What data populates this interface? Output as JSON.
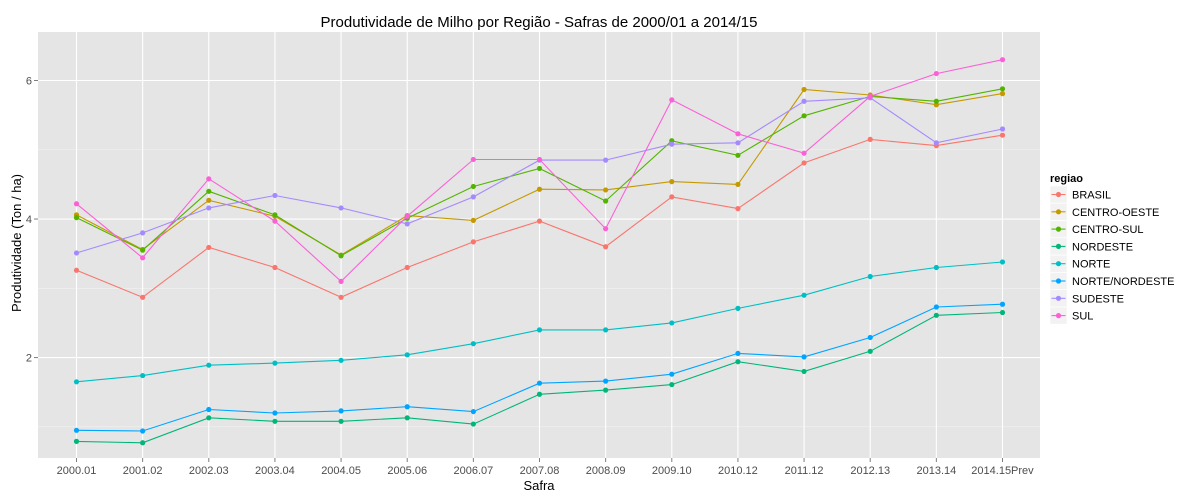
{
  "chart_data": {
    "type": "line",
    "title": "Produtividade de Milho por Região - Safras de 2000/01 a 2014/15",
    "xlabel": "Safra",
    "ylabel": "Produtividade (Ton / ha)",
    "categories": [
      "2000.01",
      "2001.02",
      "2002.03",
      "2003.04",
      "2004.05",
      "2005.06",
      "2006.07",
      "2007.08",
      "2008.09",
      "2009.10",
      "2010.12",
      "2011.12",
      "2012.13",
      "2013.14",
      "2014.15Prev"
    ],
    "yticks": [
      2,
      4,
      6
    ],
    "ylim": [
      0.55,
      6.7
    ],
    "grid": true,
    "legend_title": "regiao",
    "legend_position": "right",
    "series": [
      {
        "name": "BRASIL",
        "color": "#F8766D",
        "values": [
          3.26,
          2.87,
          3.59,
          3.3,
          2.87,
          3.3,
          3.67,
          3.97,
          3.6,
          4.32,
          4.15,
          4.81,
          5.15,
          5.06,
          5.21
        ]
      },
      {
        "name": "CENTRO-OESTE",
        "color": "#C49A00",
        "values": [
          4.06,
          3.56,
          4.27,
          4.04,
          3.48,
          4.05,
          3.98,
          4.43,
          4.42,
          4.54,
          4.5,
          5.87,
          5.79,
          5.65,
          5.81
        ]
      },
      {
        "name": "CENTRO-SUL",
        "color": "#53B400",
        "values": [
          4.02,
          3.55,
          4.4,
          4.06,
          3.47,
          4.01,
          4.47,
          4.73,
          4.26,
          5.13,
          4.92,
          5.49,
          5.77,
          5.7,
          5.88
        ]
      },
      {
        "name": "NORDESTE",
        "color": "#00B67A",
        "values": [
          0.79,
          0.77,
          1.13,
          1.08,
          1.08,
          1.13,
          1.04,
          1.47,
          1.53,
          1.61,
          1.94,
          1.8,
          2.09,
          2.61,
          2.65
        ]
      },
      {
        "name": "NORTE",
        "color": "#00BFC4",
        "values": [
          1.65,
          1.74,
          1.89,
          1.92,
          1.96,
          2.04,
          2.2,
          2.4,
          2.4,
          2.5,
          2.71,
          2.9,
          3.17,
          3.3,
          3.38
        ]
      },
      {
        "name": "NORTE/NORDESTE",
        "color": "#00A5FF",
        "values": [
          0.95,
          0.94,
          1.25,
          1.2,
          1.23,
          1.29,
          1.22,
          1.63,
          1.66,
          1.76,
          2.06,
          2.01,
          2.29,
          2.73,
          2.77
        ]
      },
      {
        "name": "SUDESTE",
        "color": "#A58AFF",
        "values": [
          3.51,
          3.8,
          4.16,
          4.34,
          4.16,
          3.93,
          4.32,
          4.85,
          4.85,
          5.08,
          5.1,
          5.7,
          5.75,
          5.1,
          5.3
        ]
      },
      {
        "name": "SUL",
        "color": "#FB61D7",
        "values": [
          4.22,
          3.44,
          4.58,
          3.97,
          3.1,
          4.04,
          4.86,
          4.86,
          3.86,
          5.72,
          5.23,
          4.95,
          5.77,
          6.1,
          6.3
        ]
      }
    ]
  }
}
